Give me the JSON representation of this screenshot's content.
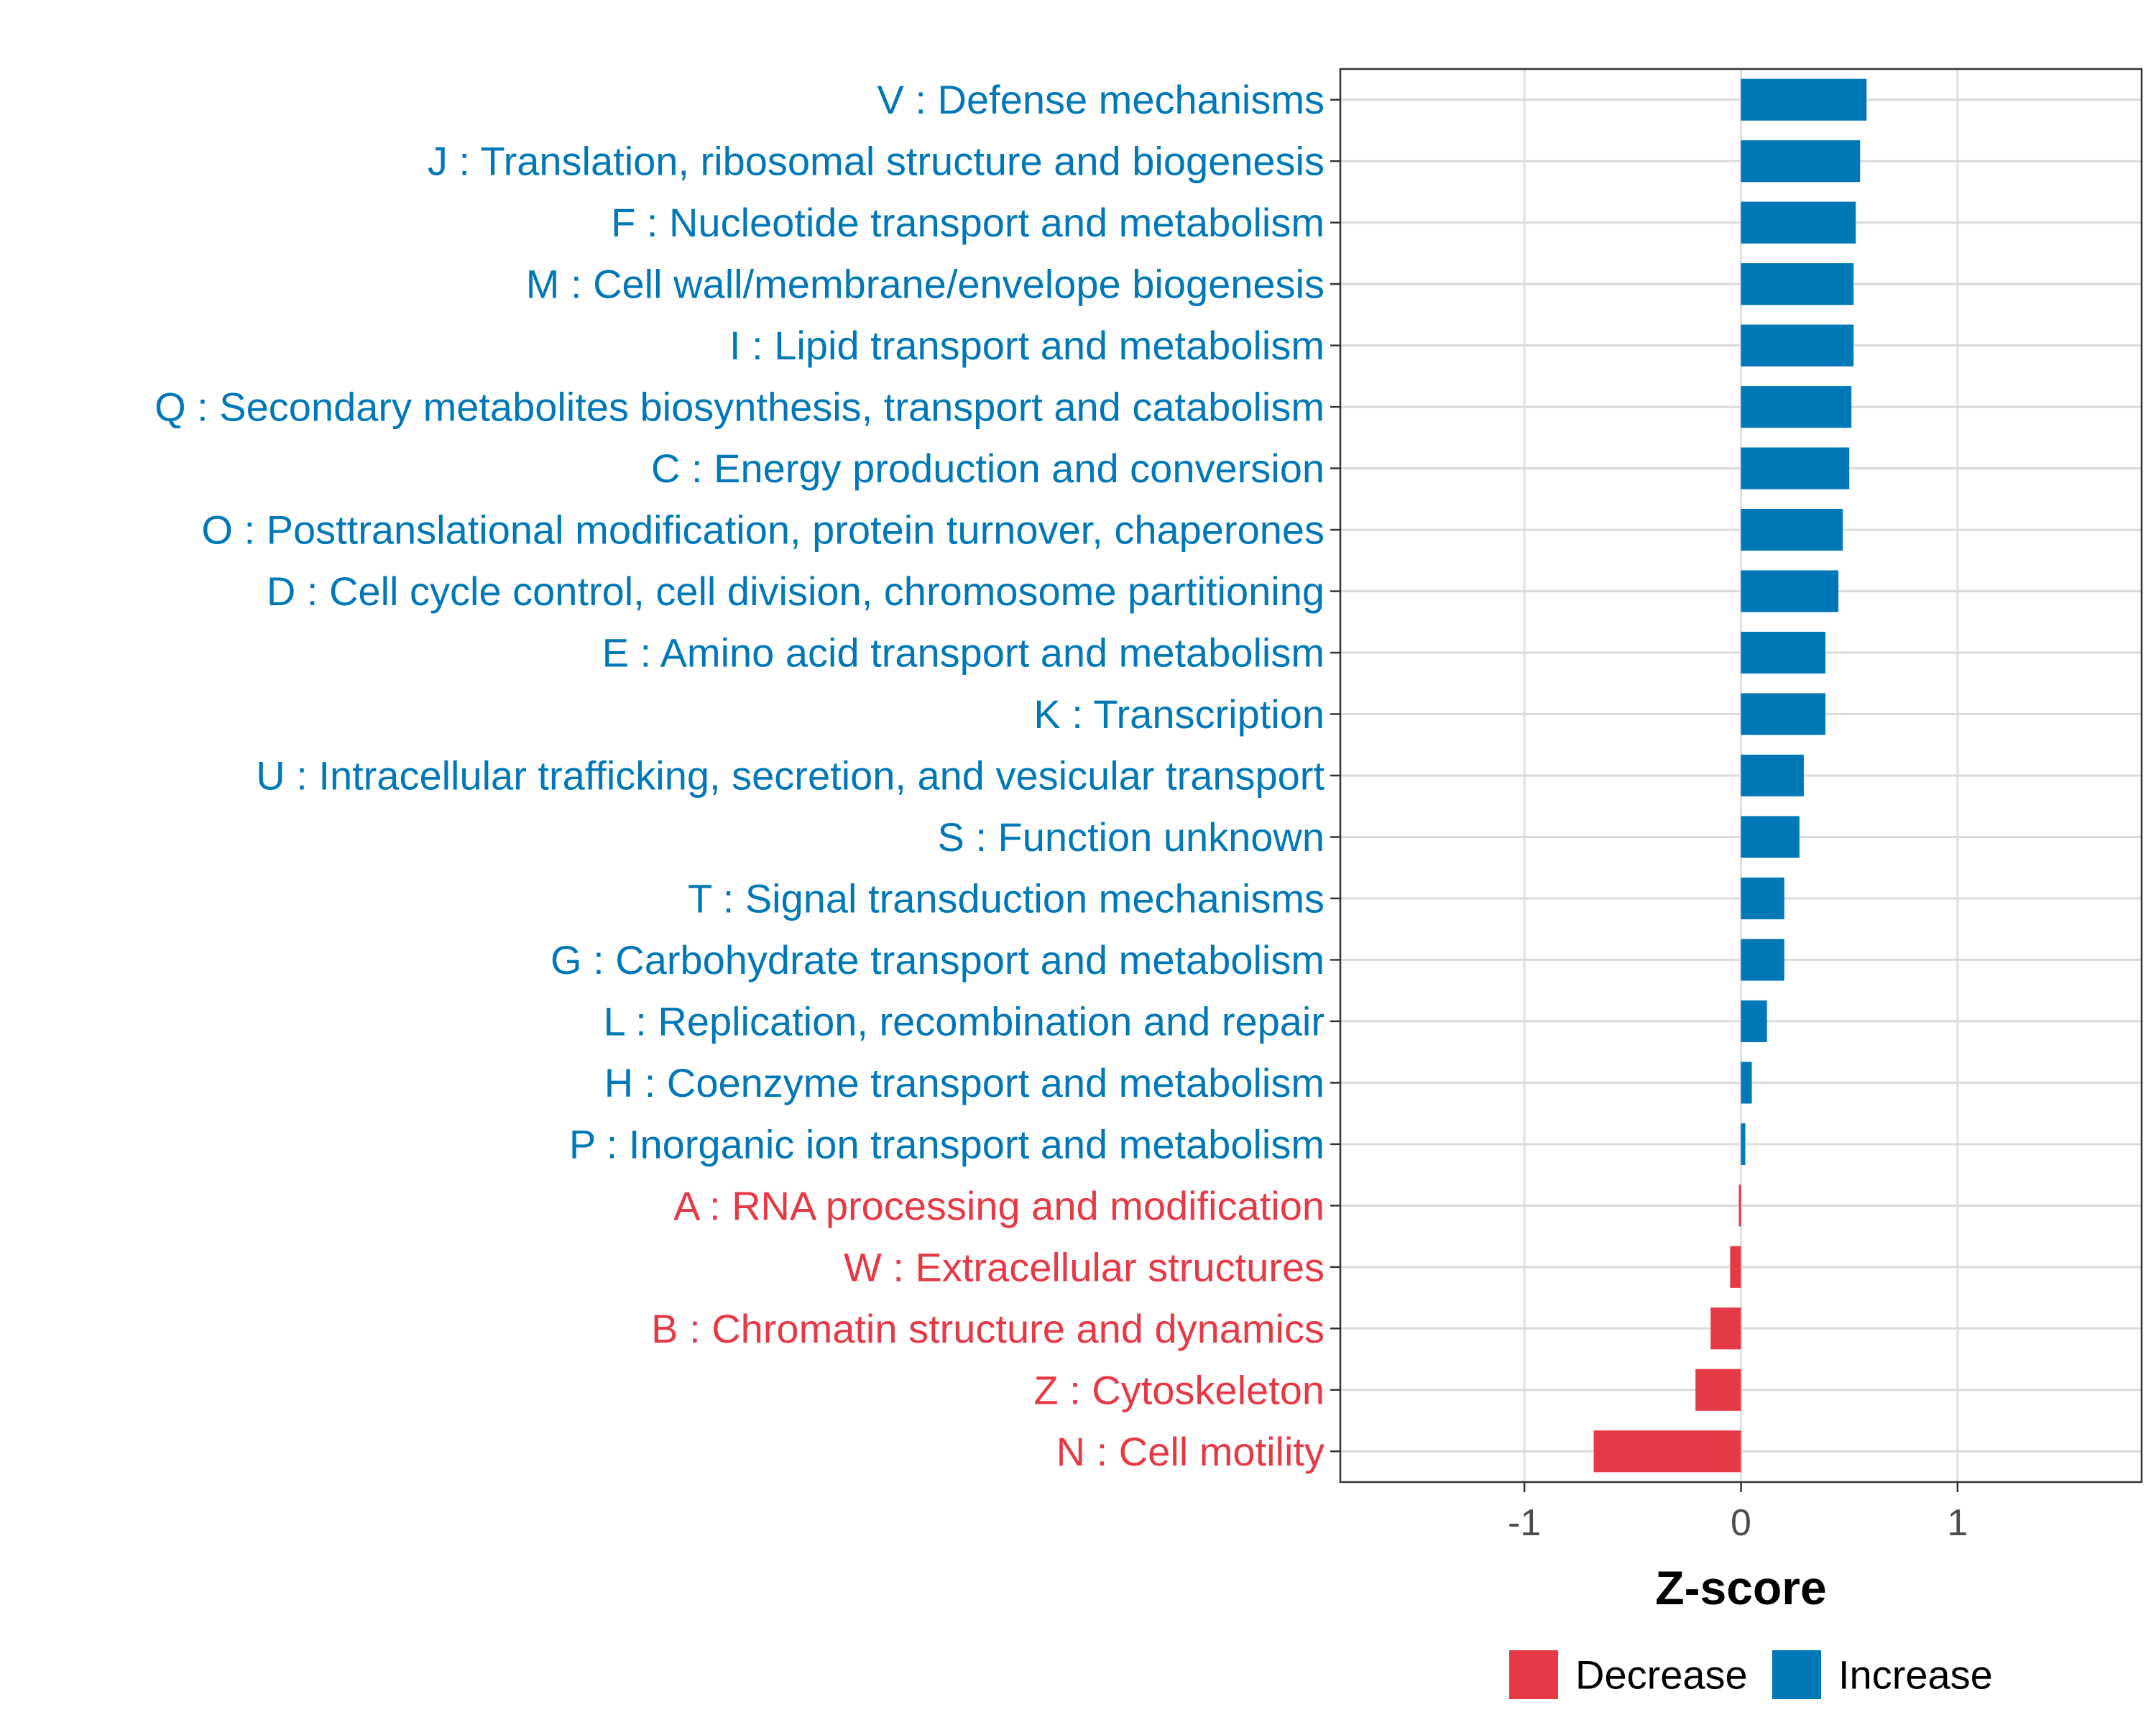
{
  "chart_data": {
    "type": "bar",
    "orientation": "horizontal",
    "title": "",
    "xlabel": "Z-score",
    "ylabel": "",
    "xlim": [
      -1.85,
      1.85
    ],
    "xticks": [
      -1,
      0,
      1
    ],
    "xtick_labels": [
      "-1",
      "0",
      "1"
    ],
    "grid": true,
    "legend_position": "bottom",
    "legend": [
      {
        "name": "Decrease",
        "color": "#E63946"
      },
      {
        "name": "Increase",
        "color": "#0077B6"
      }
    ],
    "categories": [
      "V : Defense mechanisms",
      "J : Translation, ribosomal structure and biogenesis",
      "F : Nucleotide transport and metabolism",
      "M : Cell wall/membrane/envelope biogenesis",
      "I : Lipid transport and metabolism",
      "Q : Secondary metabolites biosynthesis, transport and catabolism",
      "C : Energy production and conversion",
      "O : Posttranslational modification, protein turnover, chaperones",
      "D : Cell cycle control, cell division, chromosome partitioning",
      "E : Amino acid transport and metabolism",
      "K : Transcription",
      "U : Intracellular trafficking, secretion, and vesicular transport",
      "S : Function unknown",
      "T : Signal transduction mechanisms",
      "G : Carbohydrate transport and metabolism",
      "L : Replication, recombination and repair",
      "H : Coenzyme transport and metabolism",
      "P : Inorganic ion transport and metabolism",
      "A : RNA processing and modification",
      "W : Extracellular structures",
      "B : Chromatin structure and dynamics",
      "Z : Cytoskeleton",
      "N : Cell motility"
    ],
    "values": [
      0.58,
      0.55,
      0.53,
      0.52,
      0.52,
      0.51,
      0.5,
      0.47,
      0.45,
      0.39,
      0.39,
      0.29,
      0.27,
      0.2,
      0.2,
      0.12,
      0.05,
      0.02,
      -0.01,
      -0.05,
      -0.14,
      -0.21,
      -0.68
    ]
  }
}
